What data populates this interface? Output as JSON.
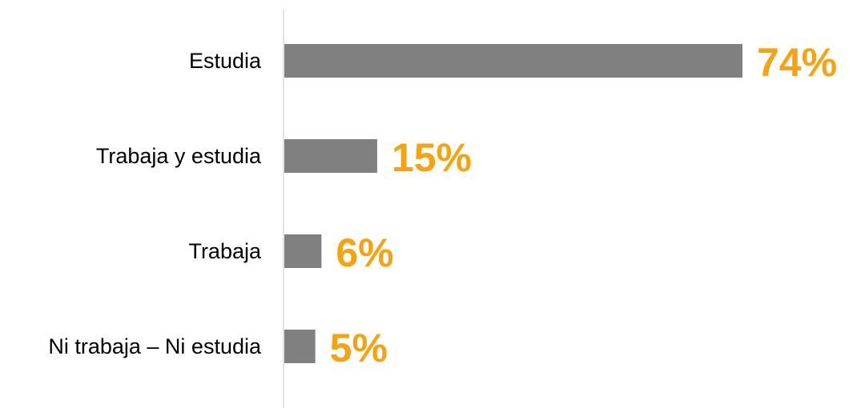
{
  "chart_data": {
    "type": "bar",
    "orientation": "horizontal",
    "categories": [
      "Estudia",
      "Trabaja y estudia",
      "Trabaja",
      "Ni trabaja – Ni estudia"
    ],
    "values": [
      74,
      15,
      6,
      5
    ],
    "value_labels": [
      "74%",
      "15%",
      "6%",
      "5%"
    ],
    "unit": "%",
    "xlim": [
      0,
      74
    ],
    "grid": false,
    "legend": "none",
    "colors": {
      "bar": "#808080",
      "value_label": "#F5A30F",
      "axis": "#D9D9D9"
    }
  }
}
